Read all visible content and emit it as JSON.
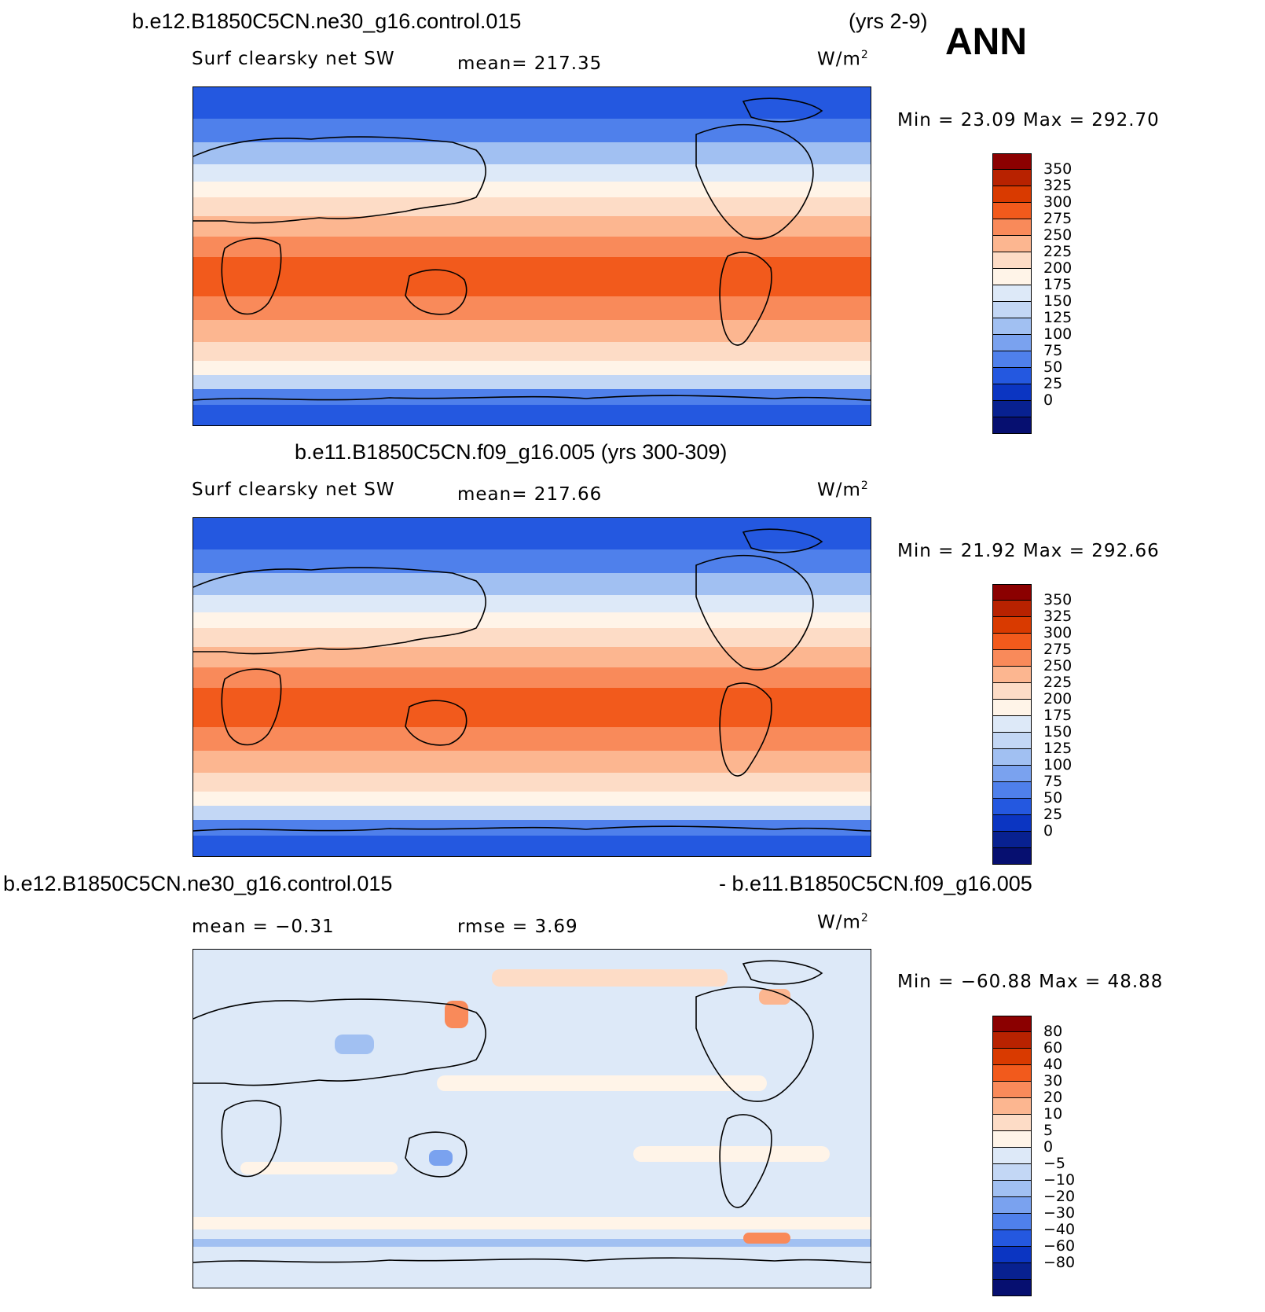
{
  "header": {
    "case1": "b.e12.B1850C5CN.ne30_g16.control.015",
    "yrs1": "(yrs 2-9)",
    "season": "ANN",
    "case2_full": "b.e11.B1850C5CN.f09_g16.005 (yrs 300-309)",
    "diff_left": "b.e12.B1850C5CN.ne30_g16.control.015",
    "diff_right": "- b.e11.B1850C5CN.f09_g16.005"
  },
  "panels": [
    {
      "id": "panel1",
      "title_left": "Surf clearsky net SW",
      "mean_text": "mean=  217.35",
      "units": "W/m",
      "units_exp": "2",
      "minmax": "Min =    23.09  Max  =  292.70",
      "cbar_colors": [
        "#8b0000",
        "#b82200",
        "#d93a00",
        "#f25a1c",
        "#f98a5a",
        "#fcb690",
        "#fddcc6",
        "#fff4e8",
        "#dde9f8",
        "#c3d7f5",
        "#a1c0f2",
        "#7aa2ef",
        "#4f80eb",
        "#2458e0",
        "#0b35c2",
        "#082190",
        "#060f70"
      ],
      "cbar_labels": [
        "350",
        "325",
        "300",
        "275",
        "250",
        "225",
        "200",
        "175",
        "150",
        "125",
        "100",
        "75",
        "50",
        "25",
        "0"
      ]
    },
    {
      "id": "panel2",
      "title_left": "Surf clearsky net SW",
      "mean_text": "mean=  217.66",
      "units": "W/m",
      "units_exp": "2",
      "minmax": "Min =    21.92  Max  =  292.66",
      "cbar_colors": [
        "#8b0000",
        "#b82200",
        "#d93a00",
        "#f25a1c",
        "#f98a5a",
        "#fcb690",
        "#fddcc6",
        "#fff4e8",
        "#dde9f8",
        "#c3d7f5",
        "#a1c0f2",
        "#7aa2ef",
        "#4f80eb",
        "#2458e0",
        "#0b35c2",
        "#082190",
        "#060f70"
      ],
      "cbar_labels": [
        "350",
        "325",
        "300",
        "275",
        "250",
        "225",
        "200",
        "175",
        "150",
        "125",
        "100",
        "75",
        "50",
        "25",
        "0"
      ]
    },
    {
      "id": "panel3",
      "mean_text": "mean =   −0.31",
      "rmse_text": "rmse =     3.69",
      "units": "W/m",
      "units_exp": "2",
      "minmax": "Min =  −60.88  Max  =   48.88",
      "cbar_colors": [
        "#8b0000",
        "#b82200",
        "#d93a00",
        "#f25a1c",
        "#f98a5a",
        "#fcb690",
        "#fddcc6",
        "#fff4e8",
        "#dde9f8",
        "#c3d7f5",
        "#a1c0f2",
        "#7aa2ef",
        "#4f80eb",
        "#2458e0",
        "#0b35c2",
        "#082190",
        "#060f70"
      ],
      "cbar_labels": [
        "80",
        "60",
        "40",
        "30",
        "20",
        "10",
        "5",
        "0",
        "−5",
        "−10",
        "−20",
        "−30",
        "−40",
        "−60",
        "−80"
      ]
    }
  ]
}
